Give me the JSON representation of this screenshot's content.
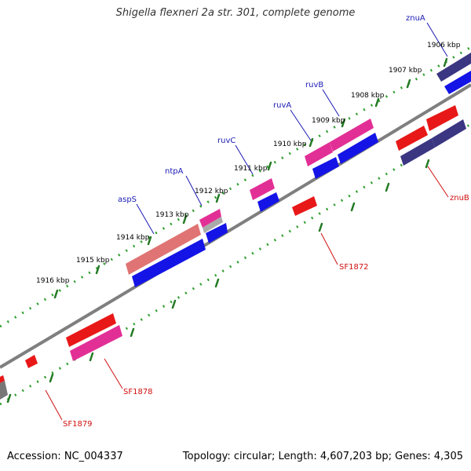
{
  "title": "Shigella flexneri 2a str. 301, complete genome",
  "accession": "Accession: NC_004337",
  "summary": "Topology: circular; Length: 4,607,203 bp; Genes: 4,305",
  "colors": {
    "backbone": "#7f7f7f",
    "tick_dot": "#2e9e2e",
    "tick_major": "#257a25",
    "label_forward": "#1a1ab4",
    "label_reverse": "#d01010",
    "gene_red": "#e81818",
    "gene_pink": "#e22f96",
    "gene_blue": "#1414e6",
    "gene_navy": "#3b3682",
    "gene_salmon": "#e07474",
    "gene_gray": "#8a8a8a"
  },
  "ticks": [
    {
      "label": "1906 kbp"
    },
    {
      "label": "1907 kbp"
    },
    {
      "label": "1908 kbp"
    },
    {
      "label": "1909 kbp"
    },
    {
      "label": "1910 kbp"
    },
    {
      "label": "1911 kbp"
    },
    {
      "label": "1912 kbp"
    },
    {
      "label": "1913 kbp"
    },
    {
      "label": "1914 kbp"
    },
    {
      "label": "1915 kbp"
    },
    {
      "label": "1916 kbp"
    }
  ],
  "gene_labels": [
    {
      "name": "znuA",
      "strand": "forward"
    },
    {
      "name": "ruvB",
      "strand": "forward"
    },
    {
      "name": "ruvA",
      "strand": "forward"
    },
    {
      "name": "ruvC",
      "strand": "forward"
    },
    {
      "name": "ntpA",
      "strand": "forward"
    },
    {
      "name": "aspS",
      "strand": "forward"
    },
    {
      "name": "znuB",
      "strand": "reverse"
    },
    {
      "name": "SF1872",
      "strand": "reverse"
    },
    {
      "name": "SF1878",
      "strand": "reverse"
    },
    {
      "name": "SF1879",
      "strand": "reverse"
    }
  ]
}
